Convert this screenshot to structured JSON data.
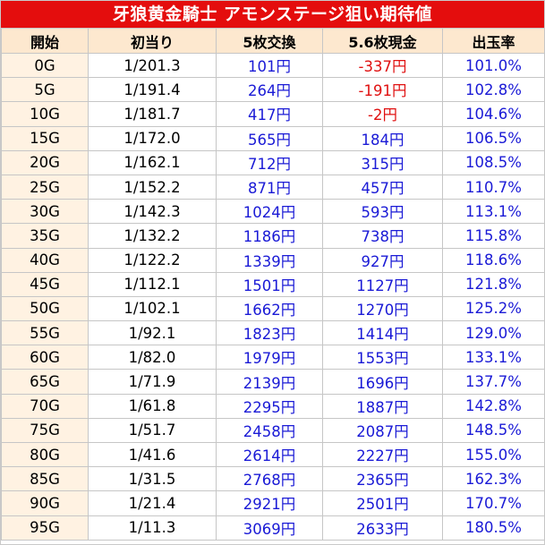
{
  "title": "牙狼黄金騎士 アモンステージ狙い期待値",
  "colors": {
    "title_bg": "#e40d0d",
    "header_bg": "#fde8cf",
    "start_col_bg": "#fff2e2",
    "positive_value": "#1a1ad6",
    "negative_value": "#e01010"
  },
  "headers": [
    "開始",
    "初当り",
    "5枚交換",
    "5.6枚現金",
    "出玉率"
  ],
  "rows": [
    {
      "start": "0G",
      "first_hit": "1/201.3",
      "exchange_5": "101円",
      "cash_5_6": "-337円",
      "payout_rate": "101.0%"
    },
    {
      "start": "5G",
      "first_hit": "1/191.4",
      "exchange_5": "264円",
      "cash_5_6": "-191円",
      "payout_rate": "102.8%"
    },
    {
      "start": "10G",
      "first_hit": "1/181.7",
      "exchange_5": "417円",
      "cash_5_6": "-2円",
      "payout_rate": "104.6%"
    },
    {
      "start": "15G",
      "first_hit": "1/172.0",
      "exchange_5": "565円",
      "cash_5_6": "184円",
      "payout_rate": "106.5%"
    },
    {
      "start": "20G",
      "first_hit": "1/162.1",
      "exchange_5": "712円",
      "cash_5_6": "315円",
      "payout_rate": "108.5%"
    },
    {
      "start": "25G",
      "first_hit": "1/152.2",
      "exchange_5": "871円",
      "cash_5_6": "457円",
      "payout_rate": "110.7%"
    },
    {
      "start": "30G",
      "first_hit": "1/142.3",
      "exchange_5": "1024円",
      "cash_5_6": "593円",
      "payout_rate": "113.1%"
    },
    {
      "start": "35G",
      "first_hit": "1/132.2",
      "exchange_5": "1186円",
      "cash_5_6": "738円",
      "payout_rate": "115.8%"
    },
    {
      "start": "40G",
      "first_hit": "1/122.2",
      "exchange_5": "1339円",
      "cash_5_6": "927円",
      "payout_rate": "118.6%"
    },
    {
      "start": "45G",
      "first_hit": "1/112.1",
      "exchange_5": "1501円",
      "cash_5_6": "1127円",
      "payout_rate": "121.8%"
    },
    {
      "start": "50G",
      "first_hit": "1/102.1",
      "exchange_5": "1662円",
      "cash_5_6": "1270円",
      "payout_rate": "125.2%"
    },
    {
      "start": "55G",
      "first_hit": "1/92.1",
      "exchange_5": "1823円",
      "cash_5_6": "1414円",
      "payout_rate": "129.0%"
    },
    {
      "start": "60G",
      "first_hit": "1/82.0",
      "exchange_5": "1979円",
      "cash_5_6": "1553円",
      "payout_rate": "133.1%"
    },
    {
      "start": "65G",
      "first_hit": "1/71.9",
      "exchange_5": "2139円",
      "cash_5_6": "1696円",
      "payout_rate": "137.7%"
    },
    {
      "start": "70G",
      "first_hit": "1/61.8",
      "exchange_5": "2295円",
      "cash_5_6": "1887円",
      "payout_rate": "142.8%"
    },
    {
      "start": "75G",
      "first_hit": "1/51.7",
      "exchange_5": "2458円",
      "cash_5_6": "2087円",
      "payout_rate": "148.5%"
    },
    {
      "start": "80G",
      "first_hit": "1/41.6",
      "exchange_5": "2614円",
      "cash_5_6": "2227円",
      "payout_rate": "155.0%"
    },
    {
      "start": "85G",
      "first_hit": "1/31.5",
      "exchange_5": "2768円",
      "cash_5_6": "2365円",
      "payout_rate": "162.3%"
    },
    {
      "start": "90G",
      "first_hit": "1/21.4",
      "exchange_5": "2921円",
      "cash_5_6": "2501円",
      "payout_rate": "170.7%"
    },
    {
      "start": "95G",
      "first_hit": "1/11.3",
      "exchange_5": "3069円",
      "cash_5_6": "2633円",
      "payout_rate": "180.5%"
    }
  ]
}
